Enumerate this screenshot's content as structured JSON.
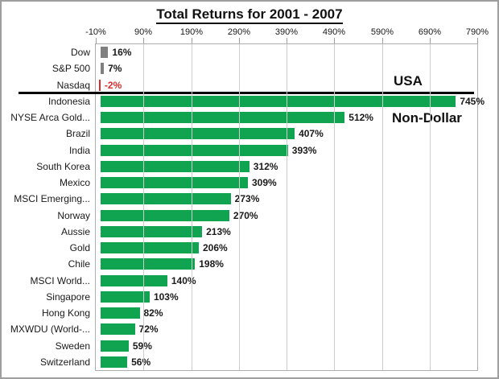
{
  "title": "Total Returns for 2001 - 2007",
  "annotations": {
    "usa": "USA",
    "non_dollar": "Non-Dollar"
  },
  "colors": {
    "bar_green": "#10a450",
    "bar_gray": "#7f7f7f",
    "bar_red": "#d92b2b",
    "negative_text": "#d92b2b",
    "grid": "#cdcdcd",
    "plot_border": "#aeaeae",
    "separator": "#000000"
  },
  "chart_data": {
    "type": "bar",
    "orientation": "horizontal",
    "title": "Total Returns for 2001 - 2007",
    "xlabel": "",
    "ylabel": "",
    "xlim": [
      -10,
      790
    ],
    "tick_interval": 100,
    "tick_labels": [
      "-10%",
      "90%",
      "190%",
      "290%",
      "390%",
      "490%",
      "590%",
      "690%",
      "790%"
    ],
    "grid": true,
    "legend": "none",
    "groups": [
      "USA",
      "Non-Dollar"
    ],
    "series": [
      {
        "category": "Dow",
        "value": 16,
        "label": "16%",
        "group": "USA",
        "color": "gray"
      },
      {
        "category": "S&P 500",
        "value": 7,
        "label": "7%",
        "group": "USA",
        "color": "gray"
      },
      {
        "category": "Nasdaq",
        "value": -2,
        "label": "-2%",
        "group": "USA",
        "color": "red"
      },
      {
        "category": "Indonesia",
        "value": 745,
        "label": "745%",
        "group": "Non-Dollar",
        "color": "green"
      },
      {
        "category": "NYSE Arca Gold...",
        "value": 512,
        "label": "512%",
        "group": "Non-Dollar",
        "color": "green"
      },
      {
        "category": "Brazil",
        "value": 407,
        "label": "407%",
        "group": "Non-Dollar",
        "color": "green"
      },
      {
        "category": "India",
        "value": 393,
        "label": "393%",
        "group": "Non-Dollar",
        "color": "green"
      },
      {
        "category": "South Korea",
        "value": 312,
        "label": "312%",
        "group": "Non-Dollar",
        "color": "green"
      },
      {
        "category": "Mexico",
        "value": 309,
        "label": "309%",
        "group": "Non-Dollar",
        "color": "green"
      },
      {
        "category": "MSCI Emerging...",
        "value": 273,
        "label": "273%",
        "group": "Non-Dollar",
        "color": "green"
      },
      {
        "category": "Norway",
        "value": 270,
        "label": "270%",
        "group": "Non-Dollar",
        "color": "green"
      },
      {
        "category": "Aussie",
        "value": 213,
        "label": "213%",
        "group": "Non-Dollar",
        "color": "green"
      },
      {
        "category": "Gold",
        "value": 206,
        "label": "206%",
        "group": "Non-Dollar",
        "color": "green"
      },
      {
        "category": "Chile",
        "value": 198,
        "label": "198%",
        "group": "Non-Dollar",
        "color": "green"
      },
      {
        "category": "MSCI World...",
        "value": 140,
        "label": "140%",
        "group": "Non-Dollar",
        "color": "green"
      },
      {
        "category": "Singapore",
        "value": 103,
        "label": "103%",
        "group": "Non-Dollar",
        "color": "green"
      },
      {
        "category": "Hong Kong",
        "value": 82,
        "label": "82%",
        "group": "Non-Dollar",
        "color": "green"
      },
      {
        "category": "MXWDU (World-...",
        "value": 72,
        "label": "72%",
        "group": "Non-Dollar",
        "color": "green"
      },
      {
        "category": "Sweden",
        "value": 59,
        "label": "59%",
        "group": "Non-Dollar",
        "color": "green"
      },
      {
        "category": "Switzerland",
        "value": 56,
        "label": "56%",
        "group": "Non-Dollar",
        "color": "green"
      }
    ]
  }
}
